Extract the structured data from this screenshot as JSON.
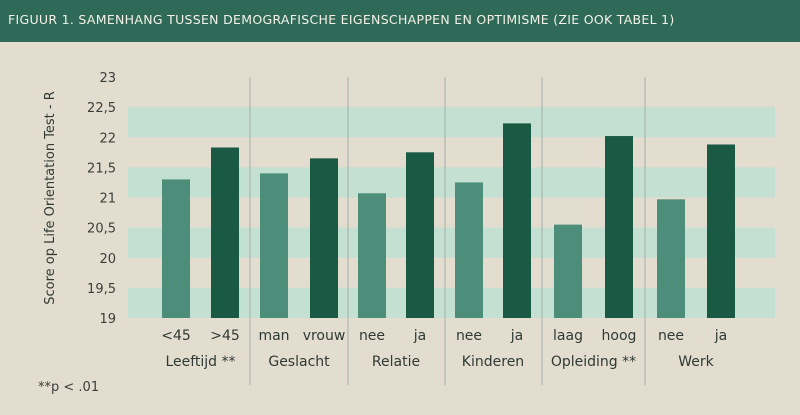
{
  "banner": {
    "title": "FIGUUR 1. SAMENHANG TUSSEN DEMOGRAFISCHE EIGENSCHAPPEN EN OPTIMISME (ZIE OOK TABEL 1)"
  },
  "footnote": "**p < .01",
  "colors": {
    "banner": "#2f6a58",
    "band": "#c4e0d2",
    "bar_light": "#4d8e7a",
    "bar_dark": "#1a5a45"
  },
  "chart_data": {
    "type": "bar",
    "ylabel": "Score op Life Orientation Test - R",
    "ylim": [
      19,
      23
    ],
    "yticks": [
      "19",
      "19,5",
      "20",
      "20,5",
      "21",
      "21,5",
      "22",
      "22,5",
      "23"
    ],
    "groups": [
      {
        "name": "Leeftijd **",
        "categories": [
          "<45",
          ">45"
        ],
        "values": [
          21.3,
          21.83
        ]
      },
      {
        "name": "Geslacht",
        "categories": [
          "man",
          "vrouw"
        ],
        "values": [
          21.4,
          21.65
        ]
      },
      {
        "name": "Relatie",
        "categories": [
          "nee",
          "ja"
        ],
        "values": [
          21.07,
          21.75
        ]
      },
      {
        "name": "Kinderen",
        "categories": [
          "nee",
          "ja"
        ],
        "values": [
          21.25,
          22.23
        ]
      },
      {
        "name": "Opleiding **",
        "categories": [
          "laag",
          "hoog"
        ],
        "values": [
          20.55,
          22.02
        ]
      },
      {
        "name": "Werk",
        "categories": [
          "nee",
          "ja"
        ],
        "values": [
          20.97,
          21.88
        ]
      }
    ]
  }
}
